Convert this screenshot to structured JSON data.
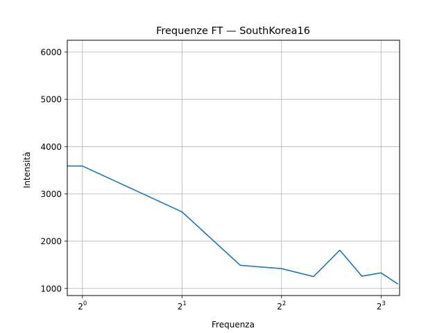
{
  "chart_data": {
    "type": "line",
    "title": "Frequenze FT — SouthKorea16",
    "xlabel": "Frequenza",
    "ylabel": "Intensità",
    "x_scale": "log2",
    "xlim": [
      0.9,
      9.1
    ],
    "ylim": [
      850,
      6250
    ],
    "grid": true,
    "x_ticks": [
      {
        "value": 1,
        "base": "2",
        "exp": "0"
      },
      {
        "value": 2,
        "base": "2",
        "exp": "1"
      },
      {
        "value": 4,
        "base": "2",
        "exp": "2"
      },
      {
        "value": 8,
        "base": "2",
        "exp": "3"
      }
    ],
    "y_ticks": [
      1000,
      2000,
      3000,
      4000,
      5000,
      6000
    ],
    "series": [
      {
        "name": "SouthKorea16",
        "color": "#1f77b4",
        "x": [
          0.9,
          1.0,
          2.0,
          3.0,
          4.0,
          5.0,
          6.0,
          7.0,
          8.0,
          9.0
        ],
        "y": [
          3590,
          3590,
          2620,
          1490,
          1420,
          1250,
          1810,
          1260,
          1330,
          1090
        ]
      }
    ]
  }
}
